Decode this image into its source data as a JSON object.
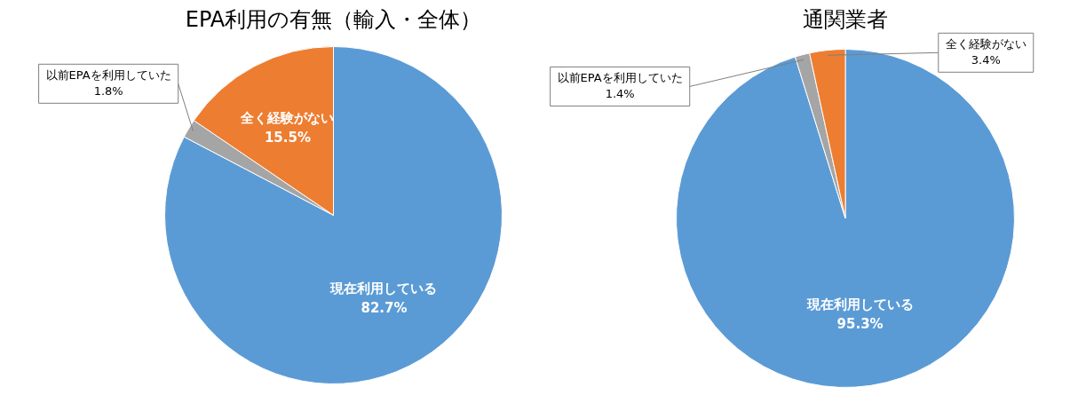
{
  "chart_data": [
    {
      "type": "pie",
      "title": "EPA利用の有無（輸入・全体）",
      "categories": [
        "現在利用している",
        "以前EPAを利用していた",
        "全く経験がない"
      ],
      "values": [
        82.7,
        1.8,
        15.5
      ],
      "colors": [
        "#5b9bd5",
        "#a5a5a5",
        "#ed7d31"
      ],
      "value_labels": [
        "82.7%",
        "1.8%",
        "15.5%"
      ]
    },
    {
      "type": "pie",
      "title": "通関業者",
      "categories": [
        "現在利用している",
        "以前EPAを利用していた",
        "全く経験がない"
      ],
      "values": [
        95.3,
        1.4,
        3.4
      ],
      "colors": [
        "#5b9bd5",
        "#a5a5a5",
        "#ed7d31"
      ],
      "value_labels": [
        "95.3%",
        "1.4%",
        "3.4%"
      ]
    }
  ]
}
